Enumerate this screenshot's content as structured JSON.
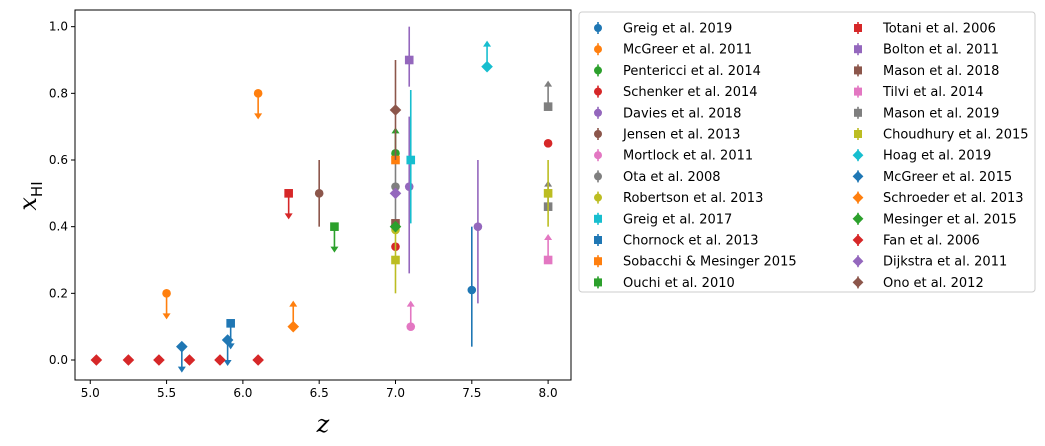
{
  "chart_data": {
    "type": "scatter",
    "xlabel": "z",
    "ylabel": "x",
    "ylabel_sub": "HI",
    "xlim": [
      4.9,
      8.15
    ],
    "ylim": [
      -0.06,
      1.05
    ],
    "xticks": [
      "5.0",
      "5.5",
      "6.0",
      "6.5",
      "7.0",
      "7.5",
      "8.0"
    ],
    "yticks": [
      "0.0",
      "0.2",
      "0.4",
      "0.6",
      "0.8",
      "1.0"
    ],
    "grid": false,
    "legend_position": "outside-right",
    "series": [
      {
        "name": "Greig et al. 2019",
        "color": "#1f77b4",
        "marker": "circle",
        "points": [
          {
            "x": 7.5,
            "y": 0.21,
            "lo": 0.04,
            "hi": 0.4
          }
        ]
      },
      {
        "name": "McGreer et al. 2011",
        "color": "#ff7f0e",
        "marker": "circle",
        "points": [
          {
            "x": 5.5,
            "y": 0.2,
            "limit": "upper"
          },
          {
            "x": 6.1,
            "y": 0.8,
            "limit": "upper"
          }
        ]
      },
      {
        "name": "Pentericci et al. 2014",
        "color": "#2ca02c",
        "marker": "circle",
        "points": [
          {
            "x": 7.0,
            "y": 0.62,
            "limit": "lower"
          }
        ]
      },
      {
        "name": "Schenker et al. 2014",
        "color": "#d62728",
        "marker": "circle",
        "points": [
          {
            "x": 7.0,
            "y": 0.34
          },
          {
            "x": 8.0,
            "y": 0.65
          }
        ]
      },
      {
        "name": "Davies et al. 2018",
        "color": "#9467bd",
        "marker": "circle",
        "points": [
          {
            "x": 7.09,
            "y": 0.52,
            "lo": 0.26,
            "hi": 0.73
          },
          {
            "x": 7.54,
            "y": 0.4,
            "lo": 0.17,
            "hi": 0.6
          }
        ]
      },
      {
        "name": "Jensen et al. 2013",
        "color": "#8c564b",
        "marker": "circle",
        "points": [
          {
            "x": 6.5,
            "y": 0.5,
            "lo": 0.4,
            "hi": 0.6
          }
        ]
      },
      {
        "name": "Mortlock et al. 2011",
        "color": "#e377c2",
        "marker": "circle",
        "points": [
          {
            "x": 7.1,
            "y": 0.1,
            "limit": "lower"
          }
        ]
      },
      {
        "name": "Ota et al. 2008",
        "color": "#7f7f7f",
        "marker": "circle",
        "points": [
          {
            "x": 7.0,
            "y": 0.52,
            "lo": 0.4,
            "hi": 0.62
          }
        ]
      },
      {
        "name": "Robertson et al. 2013",
        "color": "#bcbd22",
        "marker": "circle",
        "points": [
          {
            "x": 7.0,
            "y": 0.39
          }
        ]
      },
      {
        "name": "Greig et al. 2017",
        "color": "#17becf",
        "marker": "square",
        "points": [
          {
            "x": 7.1,
            "y": 0.6,
            "lo": 0.41,
            "hi": 0.81
          }
        ]
      },
      {
        "name": "Chornock et al. 2013",
        "color": "#1f77b4",
        "marker": "square",
        "points": [
          {
            "x": 5.92,
            "y": 0.11,
            "limit": "upper"
          }
        ]
      },
      {
        "name": "Sobacchi & Mesinger 2015",
        "color": "#ff7f0e",
        "marker": "square",
        "points": [
          {
            "x": 7.0,
            "y": 0.6
          }
        ]
      },
      {
        "name": "Ouchi et al. 2010",
        "color": "#2ca02c",
        "marker": "square",
        "points": [
          {
            "x": 6.6,
            "y": 0.4,
            "limit": "upper"
          }
        ]
      },
      {
        "name": "Totani et al. 2006",
        "color": "#d62728",
        "marker": "square",
        "points": [
          {
            "x": 6.3,
            "y": 0.5,
            "limit": "upper"
          }
        ]
      },
      {
        "name": "Bolton et al. 2011",
        "color": "#9467bd",
        "marker": "square",
        "points": [
          {
            "x": 7.09,
            "y": 0.9,
            "lo": 0.82,
            "hi": 1.0
          }
        ]
      },
      {
        "name": "Mason et al. 2018",
        "color": "#8c564b",
        "marker": "square",
        "points": [
          {
            "x": 7.0,
            "y": 0.41
          }
        ]
      },
      {
        "name": "Tilvi et al. 2014",
        "color": "#e377c2",
        "marker": "square",
        "points": [
          {
            "x": 8.0,
            "y": 0.3,
            "limit": "lower"
          }
        ]
      },
      {
        "name": "Mason et al. 2019",
        "color": "#7f7f7f",
        "marker": "square",
        "points": [
          {
            "x": 8.0,
            "y": 0.76,
            "limit": "lower"
          },
          {
            "x": 8.0,
            "y": 0.46,
            "limit": "lower"
          }
        ]
      },
      {
        "name": "Choudhury et al. 2015",
        "color": "#bcbd22",
        "marker": "square",
        "points": [
          {
            "x": 7.0,
            "y": 0.3,
            "lo": 0.2,
            "hi": 0.4
          },
          {
            "x": 8.0,
            "y": 0.5,
            "lo": 0.4,
            "hi": 0.6
          }
        ]
      },
      {
        "name": "Hoag et al. 2019",
        "color": "#17becf",
        "marker": "diamond",
        "points": [
          {
            "x": 7.6,
            "y": 0.88,
            "limit": "lower"
          }
        ]
      },
      {
        "name": "McGreer et al. 2015",
        "color": "#1f77b4",
        "marker": "diamond",
        "points": [
          {
            "x": 5.6,
            "y": 0.04,
            "limit": "upper"
          },
          {
            "x": 5.9,
            "y": 0.06,
            "limit": "upper"
          }
        ]
      },
      {
        "name": "Schroeder et al. 2013",
        "color": "#ff7f0e",
        "marker": "diamond",
        "points": [
          {
            "x": 6.33,
            "y": 0.1,
            "limit": "lower"
          }
        ]
      },
      {
        "name": "Mesinger et al. 2015",
        "color": "#2ca02c",
        "marker": "diamond",
        "points": [
          {
            "x": 7.0,
            "y": 0.4
          }
        ]
      },
      {
        "name": "Fan et al. 2006",
        "color": "#d62728",
        "marker": "diamond",
        "points": [
          {
            "x": 5.04,
            "y": 0.0
          },
          {
            "x": 5.25,
            "y": 0.0
          },
          {
            "x": 5.45,
            "y": 0.0
          },
          {
            "x": 5.65,
            "y": 0.0
          },
          {
            "x": 5.85,
            "y": 0.0
          },
          {
            "x": 6.1,
            "y": 0.0
          }
        ]
      },
      {
        "name": "Dijkstra et al. 2011",
        "color": "#9467bd",
        "marker": "diamond",
        "points": [
          {
            "x": 7.0,
            "y": 0.5
          }
        ]
      },
      {
        "name": "Ono et al. 2012",
        "color": "#8c564b",
        "marker": "diamond",
        "points": [
          {
            "x": 7.0,
            "y": 0.75,
            "lo": 0.6,
            "hi": 0.9
          }
        ]
      }
    ]
  }
}
